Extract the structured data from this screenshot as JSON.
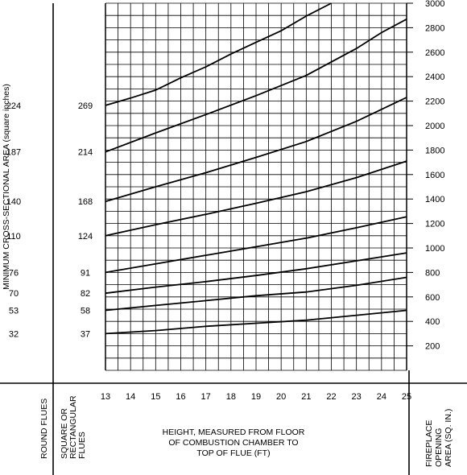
{
  "chart_data": {
    "type": "line",
    "xlabel": [
      "HEIGHT, MEASURED FROM FLOOR",
      "OF COMBUSTION CHAMBER TO",
      "TOP OF FLUE (FT)"
    ],
    "ylabel": "MINIMUM CROSS-SECTIONAL AREA (square inches)",
    "right_axis_label": [
      "FIREPLACE",
      "OPENING",
      "AREA (SQ. IN.)"
    ],
    "round_flues_label": "ROUND FLUES",
    "square_flues_label": [
      "SQUARE OR",
      "RECTANGULAR",
      "FLUES"
    ],
    "x_ticks": [
      13,
      14,
      15,
      16,
      17,
      18,
      19,
      20,
      21,
      22,
      23,
      24,
      25
    ],
    "xlim": [
      13,
      25
    ],
    "y_right_ticks": [
      200,
      400,
      600,
      800,
      1000,
      1200,
      1400,
      1600,
      1800,
      2000,
      2200,
      2400,
      2600,
      2800,
      3000
    ],
    "ylim": [
      0,
      3000
    ],
    "flue_sizes": [
      {
        "round": "32",
        "square": "37",
        "y": 300
      },
      {
        "round": "53",
        "square": "58",
        "y": 490
      },
      {
        "round": "70",
        "square": "82",
        "y": 630
      },
      {
        "round": "76",
        "square": "91",
        "y": 800
      },
      {
        "round": "110",
        "square": "124",
        "y": 1100
      },
      {
        "round": "140",
        "square": "168",
        "y": 1380
      },
      {
        "round": "187",
        "square": "214",
        "y": 1785
      },
      {
        "round": "224",
        "square": "269",
        "y": 2165
      }
    ],
    "series": [
      {
        "x": [
          13,
          15,
          17,
          19,
          21,
          23,
          25
        ],
        "y": [
          300,
          325,
          360,
          385,
          410,
          450,
          490
        ]
      },
      {
        "x": [
          13,
          15,
          17,
          19,
          21,
          23,
          25
        ],
        "y": [
          490,
          530,
          570,
          610,
          640,
          695,
          760
        ]
      },
      {
        "x": [
          13,
          15,
          17,
          19,
          21,
          23,
          25
        ],
        "y": [
          630,
          680,
          725,
          775,
          830,
          895,
          960
        ]
      },
      {
        "x": [
          13,
          15,
          17,
          19,
          21,
          23,
          25
        ],
        "y": [
          800,
          870,
          940,
          1010,
          1080,
          1165,
          1255
        ]
      },
      {
        "x": [
          13,
          15,
          17,
          19,
          21,
          23,
          25
        ],
        "y": [
          1100,
          1190,
          1275,
          1365,
          1460,
          1575,
          1710
        ]
      },
      {
        "x": [
          13,
          15,
          17,
          19,
          21,
          23,
          25
        ],
        "y": [
          1380,
          1500,
          1615,
          1740,
          1870,
          2035,
          2230
        ]
      },
      {
        "x": [
          13,
          15,
          17,
          19,
          21,
          23,
          24,
          25
        ],
        "y": [
          1785,
          1940,
          2090,
          2245,
          2410,
          2630,
          2760,
          2870
        ]
      },
      {
        "x": [
          13,
          14,
          15,
          16,
          17,
          18,
          19,
          20,
          21,
          22
        ],
        "y": [
          2165,
          2225,
          2290,
          2390,
          2480,
          2585,
          2680,
          2775,
          2895,
          3000
        ]
      }
    ],
    "grid": true
  }
}
